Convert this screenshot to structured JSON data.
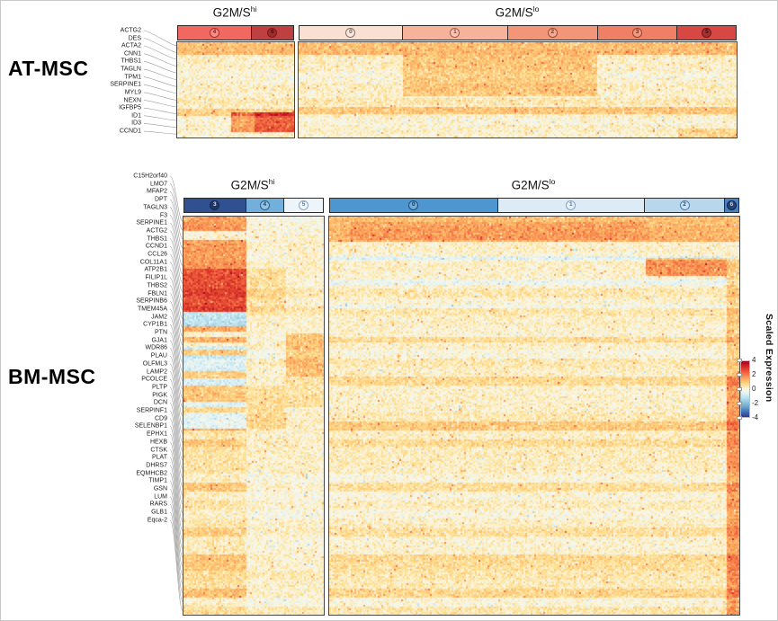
{
  "legend": {
    "title": "Scaled Expression",
    "ticks": [
      4,
      2,
      0,
      -2,
      -4
    ]
  },
  "colormap_stops": [
    [
      0.0,
      49,
      54,
      149
    ],
    [
      0.1,
      69,
      117,
      180
    ],
    [
      0.2,
      116,
      173,
      209
    ],
    [
      0.32,
      171,
      217,
      233
    ],
    [
      0.42,
      224,
      243,
      248
    ],
    [
      0.5,
      252,
      247,
      229
    ],
    [
      0.58,
      254,
      224,
      144
    ],
    [
      0.68,
      253,
      174,
      97
    ],
    [
      0.78,
      244,
      109,
      67
    ],
    [
      0.89,
      215,
      48,
      39
    ],
    [
      1.0,
      165,
      0,
      38
    ]
  ],
  "chart_data": [
    {
      "type": "heatmap",
      "title": "AT-MSC",
      "scale": {
        "label": "Scaled Expression",
        "min": -4,
        "max": 4
      },
      "rows": [
        "ACTG2",
        "DES",
        "ACTA2",
        "CNN1",
        "THBS1",
        "TAGLN",
        "TPM1",
        "SERPINE1",
        "MYL9",
        "NEXN",
        "IGFBP5",
        "ID1",
        "ID3",
        "CCND1"
      ],
      "column_groups": [
        {
          "name": "G2M/S",
          "sup": "hi",
          "clusters": [
            {
              "id": "4",
              "color": "#F0685F",
              "ring": "#A63029",
              "num": "#7F1F1A",
              "fill": "rgba(255,255,255,0.25)",
              "width_pct": 64
            },
            {
              "id": "6",
              "color": "#BE4040",
              "ring": "#7E1B1B",
              "num": "#47100E",
              "fill": "rgba(96,12,12,0.35)",
              "width_pct": 36
            }
          ]
        },
        {
          "name": "G2M/S",
          "sup": "lo",
          "clusters": [
            {
              "id": "0",
              "color": "#FADFD3",
              "ring": "#8D7268",
              "num": "#6E564C",
              "fill": "rgba(255,255,255,0.30)",
              "width_pct": 23.7
            },
            {
              "id": "1",
              "color": "#F7B29B",
              "ring": "#A05F4B",
              "num": "#7C4434",
              "fill": "rgba(255,255,255,0.25)",
              "width_pct": 24.1
            },
            {
              "id": "2",
              "color": "#F29579",
              "ring": "#9B4C35",
              "num": "#6F3322",
              "fill": "rgba(255,255,255,0.20)",
              "width_pct": 20.6
            },
            {
              "id": "3",
              "color": "#EF8066",
              "ring": "#944130",
              "num": "#6B2A1C",
              "fill": "rgba(255,255,255,0.20)",
              "width_pct": 18.3
            },
            {
              "id": "5",
              "color": "#D74744",
              "ring": "#6F1513",
              "num": "#3F0A09",
              "fill": "rgba(80,8,8,0.35)",
              "width_pct": 13.4
            }
          ]
        }
      ],
      "panels": {
        "hi": {
          "blocks": [
            [
              0,
              1,
              0,
              0.115,
              0.95,
              0
            ],
            [
              0,
              1,
              0.69,
              0.755,
              0.7,
              0
            ],
            [
              0.45,
              1,
              0.73,
              0.935,
              1.5,
              0
            ],
            [
              0.66,
              1,
              0.73,
              0.935,
              0.9,
              0
            ]
          ]
        },
        "lo": {
          "blocks": [
            [
              0,
              1,
              0,
              0.115,
              0.95,
              0
            ],
            [
              0.235,
              0.68,
              0.115,
              0.55,
              0.85,
              0
            ],
            [
              0,
              1,
              0.67,
              0.745,
              0.85,
              0
            ],
            [
              0.865,
              1,
              0.9,
              1,
              0.6,
              0
            ]
          ]
        }
      },
      "noise": {
        "mean": 0.18,
        "row_bias": 0.3,
        "amp": 0.75,
        "seed": 11
      }
    },
    {
      "type": "heatmap",
      "title": "BM-MSC",
      "scale": {
        "label": "Scaled Expression",
        "min": -4,
        "max": 4
      },
      "rows": [
        "C15H2orf40",
        "LMO7",
        "MFAP2",
        "DPT",
        "TAGLN3",
        "F3",
        "SERPINE1",
        "ACTG2",
        "THBS1",
        "CCND1",
        "CCL26",
        "COL11A1",
        "ATP2B1",
        "FILIP1L",
        "THBS2",
        "FBLN1",
        "SERPINB6",
        "TMEM45A",
        "JAM2",
        "CYP1B1",
        "PTN",
        "GJA1",
        "WDR86",
        "PLAU",
        "OLFML3",
        "LAMP2",
        "PCOLCE",
        "PLTP",
        "PIGK",
        "DCN",
        "SERPINF1",
        "CD9",
        "SELENBP1",
        "EPHX1",
        "HEXB",
        "CTSK",
        "PLAT",
        "DHRS7",
        "EQMHCB2",
        "TIMP1",
        "GSN",
        "LUM",
        "RARS",
        "GLB1",
        "Eqca-2"
      ],
      "column_groups": [
        {
          "name": "G2M/S",
          "sup": "hi",
          "clusters": [
            {
              "id": "3",
              "color": "#30508F",
              "ring": "#16294F",
              "num": "#DFE6F2",
              "fill": "rgba(10,22,52,0.45)",
              "width_pct": 44.5
            },
            {
              "id": "4",
              "color": "#72AFDA",
              "ring": "#2D5E8C",
              "num": "#173C5E",
              "fill": "rgba(255,255,255,0.25)",
              "width_pct": 27.7
            },
            {
              "id": "5",
              "color": "#EDF4FA",
              "ring": "#8FA6BB",
              "num": "#5D7792",
              "fill": "rgba(255,255,255,0.30)",
              "width_pct": 27.8
            }
          ]
        },
        {
          "name": "G2M/S",
          "sup": "lo",
          "clusters": [
            {
              "id": "0",
              "color": "#4E96CF",
              "ring": "#1C4D79",
              "num": "#0D3C63",
              "fill": "rgba(255,255,255,0.20)",
              "width_pct": 41.1
            },
            {
              "id": "1",
              "color": "#DDEBF6",
              "ring": "#86A3C0",
              "num": "#51708F",
              "fill": "rgba(255,255,255,0.30)",
              "width_pct": 36.0
            },
            {
              "id": "2",
              "color": "#B9D7EC",
              "ring": "#4C7CA8",
              "num": "#234D74",
              "fill": "rgba(255,255,255,0.25)",
              "width_pct": 19.6
            },
            {
              "id": "6",
              "color": "#4B80C2",
              "ring": "#0F2450",
              "num": "#C6D2E8",
              "fill": "rgba(8,18,48,0.55)",
              "width_pct": 3.3
            }
          ]
        }
      ],
      "panels": {
        "hi": {
          "blocks": [
            [
              0,
              0.445,
              0,
              0.035,
              1.7,
              0
            ],
            [
              0,
              0.445,
              0.055,
              0.13,
              1.5,
              0
            ],
            [
              0,
              0.445,
              0.13,
              0.235,
              2.5,
              0
            ],
            [
              0,
              0.445,
              0.236,
              0.272,
              -1.4,
              0
            ],
            [
              0,
              0.445,
              0.272,
              0.288,
              1.3,
              0
            ],
            [
              0,
              0.445,
              0.298,
              0.315,
              1.2,
              0
            ],
            [
              0,
              0.445,
              0.325,
              0.42,
              -0.9,
              0
            ],
            [
              0,
              0.445,
              0.332,
              0.346,
              1.9,
              0
            ],
            [
              0,
              0.445,
              0.388,
              0.402,
              1.7,
              0
            ],
            [
              0,
              0.445,
              0.42,
              0.465,
              0.9,
              0
            ],
            [
              0,
              0.445,
              0.465,
              0.53,
              -0.7,
              0
            ],
            [
              0,
              0.445,
              0.475,
              0.49,
              1.3,
              0
            ],
            [
              0,
              0.445,
              0.53,
              1,
              0.3,
              2.4
            ],
            [
              0.445,
              0.72,
              0.13,
              0.235,
              0.45,
              0
            ],
            [
              0.445,
              0.72,
              0.42,
              0.53,
              0.5,
              0
            ],
            [
              0.72,
              1,
              0.29,
              0.4,
              0.95,
              0
            ],
            [
              0.72,
              1,
              0.4,
              0.475,
              0.45,
              0
            ]
          ]
        },
        "lo": {
          "blocks": [
            [
              0,
              1,
              0,
              0.06,
              1.25,
              0
            ],
            [
              0.05,
              0.78,
              0.01,
              0.055,
              0.35,
              0
            ],
            [
              0,
              1,
              0.095,
              0.108,
              -0.7,
              0
            ],
            [
              0.77,
              0.965,
              0.1,
              0.147,
              1.6,
              0
            ],
            [
              0,
              1,
              0.155,
              0.168,
              -0.5,
              0
            ],
            [
              0,
              1,
              0.218,
              0.228,
              -0.45,
              0
            ],
            [
              0,
              1,
              0.3,
              0.315,
              0.55,
              0
            ],
            [
              0.967,
              1,
              0.1,
              0.4,
              0.8,
              0
            ],
            [
              0.967,
              1,
              0.4,
              1,
              1.5,
              1.5
            ],
            [
              0,
              0.967,
              0.33,
              1,
              0.08,
              1.7
            ]
          ]
        }
      },
      "noise": {
        "mean": 0.16,
        "row_bias": 0.3,
        "amp": 0.72,
        "seed": 23
      }
    }
  ]
}
